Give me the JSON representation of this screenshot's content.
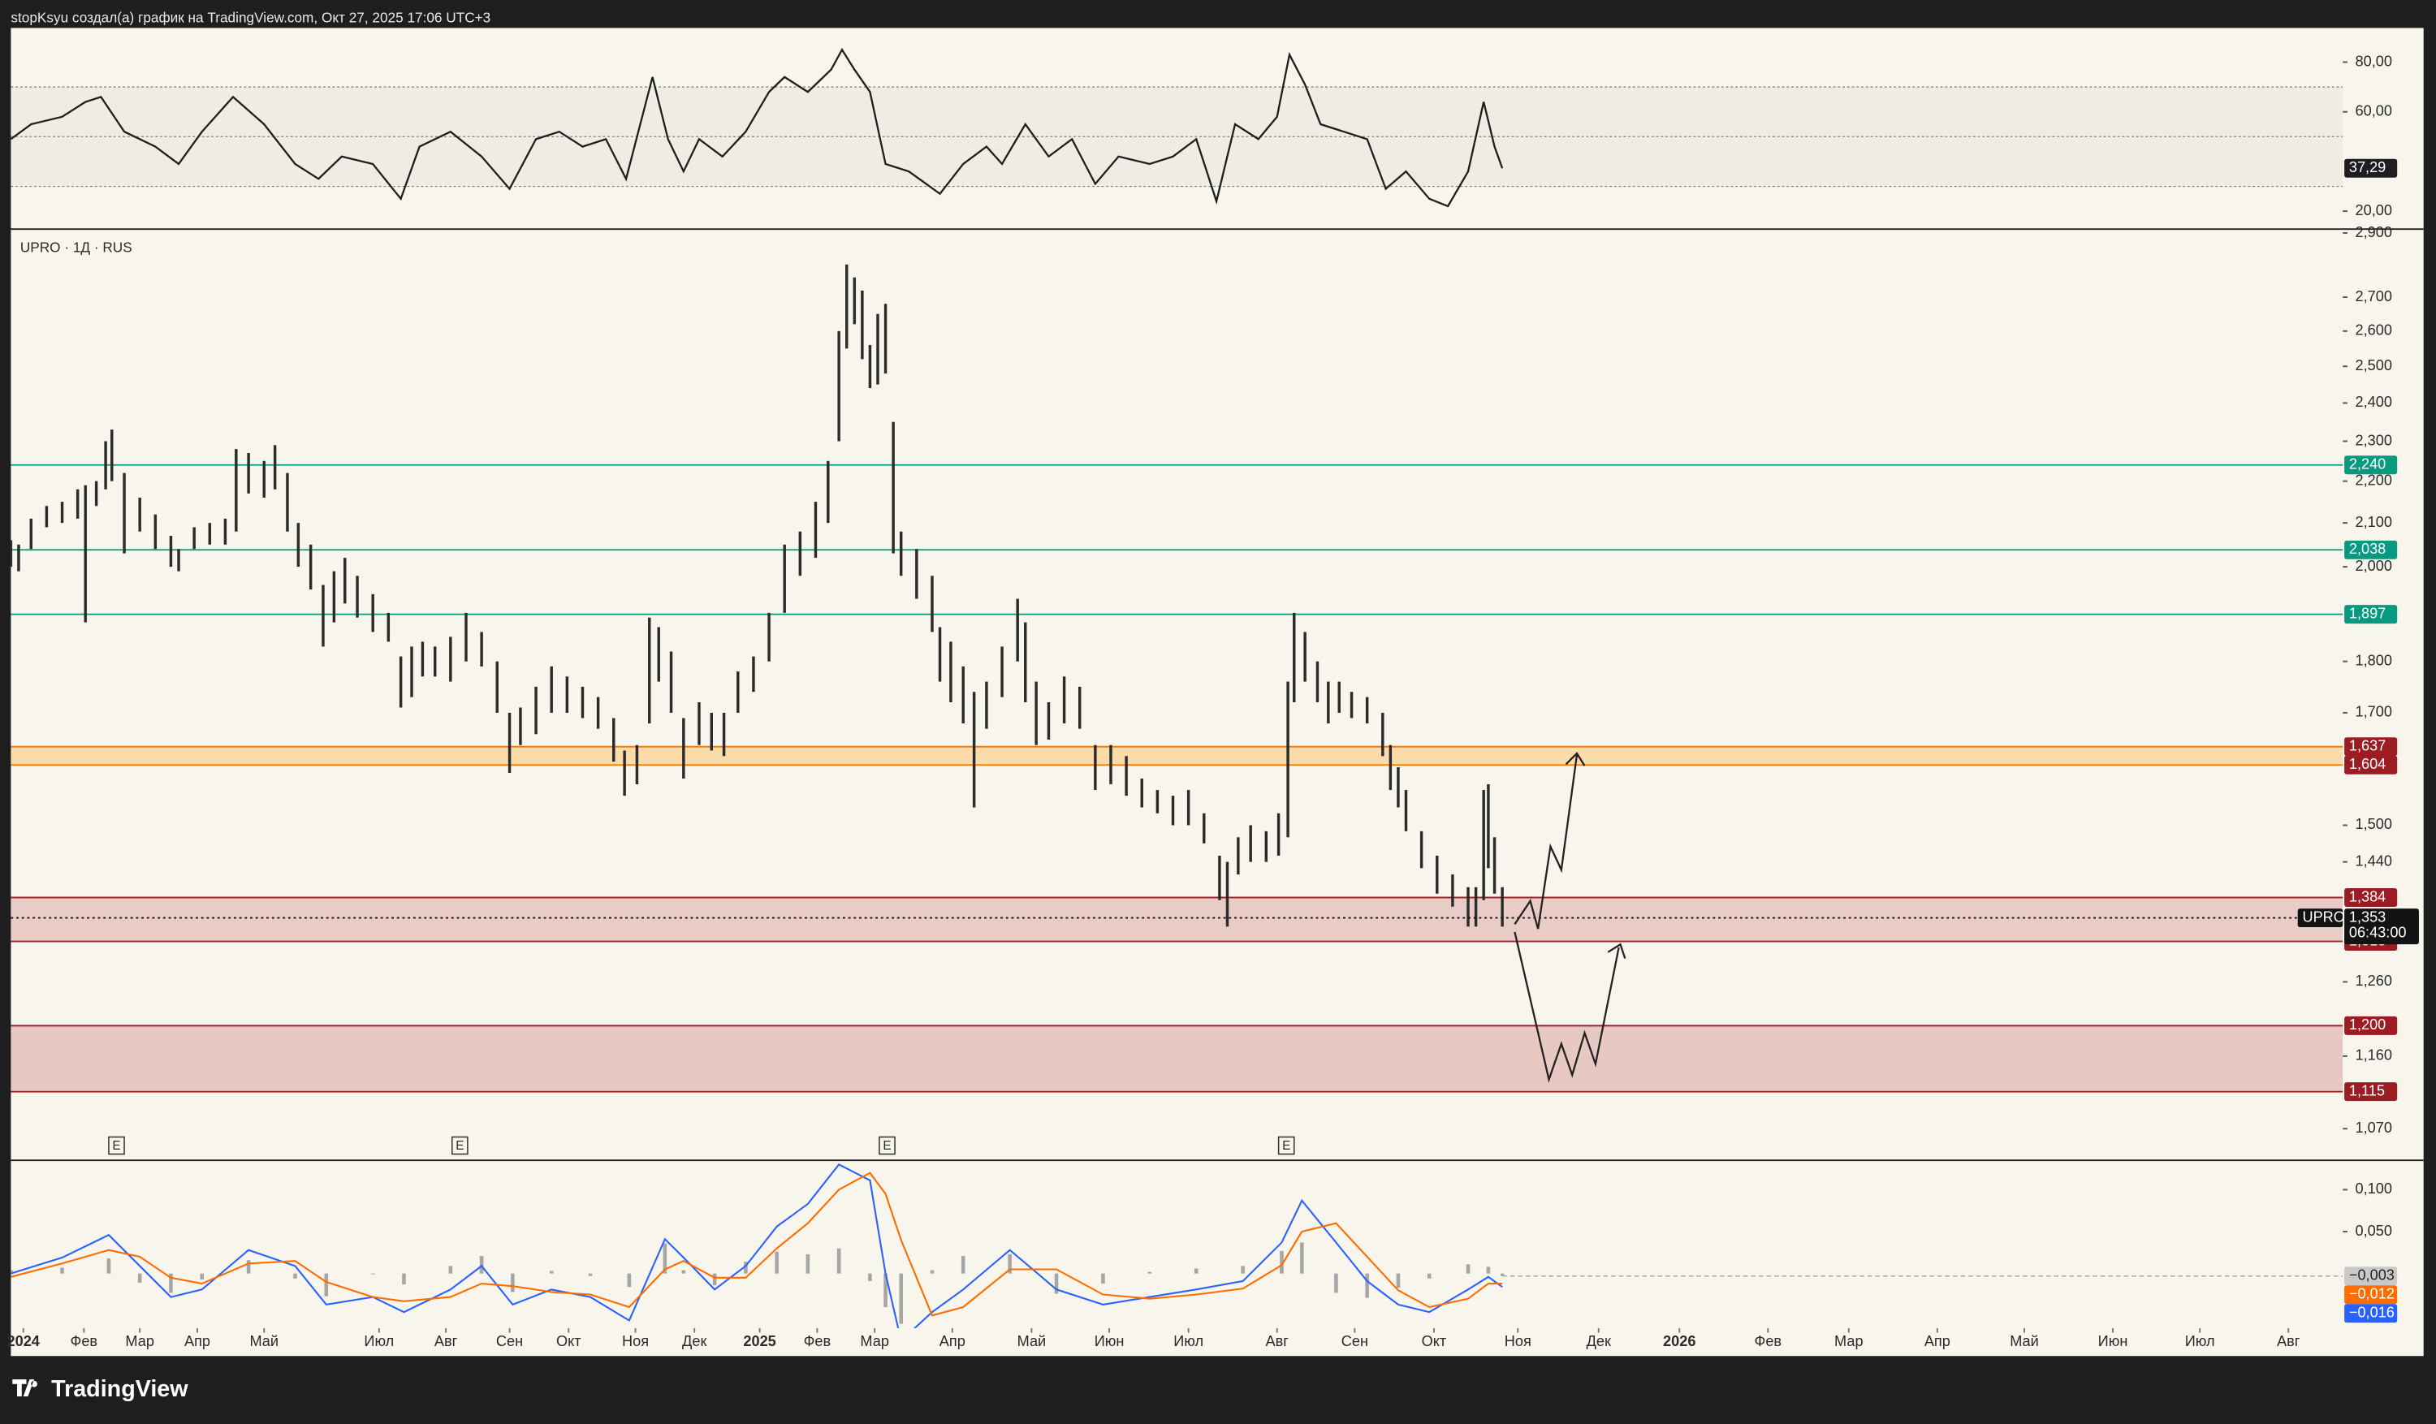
{
  "header": "stopKsyu создал(а) график на TradingView.com, Окт 27, 2025 17:06 UTC+3",
  "footer": "TradingView",
  "chart_data": [
    {
      "type": "line",
      "color": "#1e1e1e",
      "ylim": [
        13.1,
        93.75
      ],
      "xlim": [
        0,
        300
      ],
      "yticks": [
        {
          "value": 80,
          "label": "80,00"
        },
        {
          "value": 60,
          "label": "60,00"
        },
        {
          "value": 20,
          "label": "20,00"
        }
      ],
      "levels": [
        70,
        50,
        30
      ],
      "x": [
        0,
        2.6,
        6.6,
        9.6,
        11.6,
        14.6,
        18.6,
        21.6,
        24.6,
        28.6,
        32.6,
        36.6,
        39.6,
        42.6,
        46.6,
        50.2,
        52.6,
        56.6,
        60.6,
        64.2,
        67.6,
        70.6,
        73.6,
        76.6,
        79.2,
        82.6,
        84.6,
        86.6,
        88.6,
        91.6,
        94.6,
        97.6,
        99.6,
        102.6,
        105.6,
        107,
        108.6,
        110.6,
        112.6,
        115.6,
        119.6,
        122.6,
        125.6,
        127.6,
        130.6,
        133.6,
        136.6,
        139.6,
        142.6,
        146.6,
        149.6,
        152.6,
        155.2,
        157.6,
        160.6,
        163,
        164.6,
        166.6,
        168.6,
        171.6,
        174.6,
        177,
        179.6,
        182.6,
        185,
        187.6,
        189.6,
        191,
        192
      ],
      "values": [
        49,
        55,
        58,
        64,
        66,
        52,
        46,
        39,
        52,
        66,
        55,
        39,
        33,
        42,
        39,
        25,
        46,
        52,
        42,
        29,
        49,
        52,
        46,
        49,
        33,
        74,
        49,
        36,
        49,
        42,
        52,
        68,
        74,
        68,
        77,
        85,
        77,
        68,
        39,
        36,
        27,
        39,
        46,
        39,
        55,
        42,
        49,
        31,
        42,
        39,
        42,
        49,
        24,
        55,
        49,
        58,
        83,
        71,
        55,
        52,
        49,
        29,
        36,
        25,
        22,
        36,
        64,
        46,
        37.29
      ],
      "last_value": {
        "value": 37.29,
        "label": "37,29"
      }
    },
    {
      "type": "ohlc",
      "title": "UPRO · 1Д · RUS",
      "symbol": "UPRO",
      "log": true,
      "color": "#2b2b2b",
      "ylim": [
        1033,
        2910
      ],
      "xlim": [
        0,
        300
      ],
      "yticks": [
        {
          "value": 2900,
          "label": "2,900"
        },
        {
          "value": 2700,
          "label": "2,700"
        },
        {
          "value": 2600,
          "label": "2,600"
        },
        {
          "value": 2500,
          "label": "2,500"
        },
        {
          "value": 2400,
          "label": "2,400"
        },
        {
          "value": 2300,
          "label": "2,300"
        },
        {
          "value": 2200,
          "label": "2,200"
        },
        {
          "value": 2100,
          "label": "2,100"
        },
        {
          "value": 2000,
          "label": "2,000"
        },
        {
          "value": 1800,
          "label": "1,800"
        },
        {
          "value": 1700,
          "label": "1,700"
        },
        {
          "value": 1500,
          "label": "1,500"
        },
        {
          "value": 1440,
          "label": "1,440"
        },
        {
          "value": 1260,
          "label": "1,260"
        },
        {
          "value": 1160,
          "label": "1,160"
        },
        {
          "value": 1070,
          "label": "1,070"
        }
      ],
      "x": [
        0,
        1,
        2.6,
        4.6,
        6.6,
        8.6,
        9.6,
        11,
        12.2,
        13,
        14.6,
        16.6,
        18.6,
        20.6,
        21.6,
        23.6,
        25.6,
        27.6,
        29,
        30.6,
        32.6,
        34,
        35.6,
        37,
        38.6,
        40.2,
        41.6,
        43,
        44.6,
        46.6,
        48.6,
        50.2,
        51.6,
        53,
        54.6,
        56.6,
        58.6,
        60.6,
        62.6,
        64.2,
        65.6,
        67.6,
        69.6,
        71.6,
        73.6,
        75.6,
        77.6,
        79,
        80.6,
        82.2,
        83.4,
        85,
        86.6,
        88.6,
        90.2,
        91.8,
        93.6,
        95.6,
        97.6,
        99.6,
        101.6,
        103.6,
        105.2,
        106.6,
        107.6,
        108.6,
        109.6,
        110.6,
        111.6,
        112.6,
        113.6,
        114.6,
        116.6,
        118.6,
        119.6,
        121,
        122.6,
        124,
        125.6,
        127.6,
        129.6,
        130.6,
        132,
        133.6,
        135.6,
        137.6,
        139.6,
        141.6,
        143.6,
        145.6,
        147.6,
        149.6,
        151.6,
        153.6,
        155.6,
        156.6,
        158,
        159.6,
        161.6,
        163.2,
        164.4,
        165.2,
        166.6,
        168.2,
        169.6,
        171,
        172.6,
        174.6,
        176.6,
        177.6,
        178.6,
        179.6,
        181.6,
        183.6,
        185.6,
        187.6,
        188.6,
        189.6,
        190.2,
        191,
        192
      ],
      "high": [
        2060,
        2050,
        2110,
        2140,
        2150,
        2180,
        2190,
        2200,
        2300,
        2330,
        2220,
        2160,
        2120,
        2070,
        2040,
        2090,
        2100,
        2110,
        2280,
        2270,
        2250,
        2290,
        2220,
        2100,
        2050,
        1960,
        1990,
        2020,
        1980,
        1940,
        1900,
        1810,
        1830,
        1840,
        1830,
        1850,
        1900,
        1860,
        1800,
        1700,
        1710,
        1750,
        1790,
        1770,
        1750,
        1730,
        1690,
        1630,
        1640,
        1890,
        1870,
        1820,
        1690,
        1720,
        1700,
        1700,
        1780,
        1810,
        1900,
        2050,
        2080,
        2150,
        2250,
        2600,
        2800,
        2760,
        2720,
        2560,
        2650,
        2680,
        2350,
        2080,
        2040,
        1980,
        1870,
        1840,
        1790,
        1740,
        1760,
        1830,
        1930,
        1880,
        1760,
        1720,
        1770,
        1750,
        1640,
        1640,
        1620,
        1580,
        1560,
        1550,
        1560,
        1520,
        1450,
        1440,
        1480,
        1500,
        1490,
        1520,
        1760,
        1900,
        1860,
        1800,
        1760,
        1760,
        1740,
        1730,
        1700,
        1640,
        1600,
        1560,
        1490,
        1450,
        1420,
        1400,
        1400,
        1560,
        1570,
        1480,
        1400
      ],
      "low": [
        2000,
        1990,
        2040,
        2090,
        2100,
        2110,
        1880,
        2140,
        2180,
        2200,
        2030,
        2080,
        2040,
        2000,
        1990,
        2040,
        2050,
        2050,
        2080,
        2170,
        2160,
        2180,
        2080,
        2000,
        1950,
        1830,
        1880,
        1920,
        1890,
        1860,
        1840,
        1710,
        1730,
        1770,
        1770,
        1760,
        1800,
        1790,
        1700,
        1590,
        1640,
        1660,
        1700,
        1700,
        1690,
        1670,
        1610,
        1550,
        1570,
        1680,
        1760,
        1700,
        1580,
        1640,
        1630,
        1620,
        1700,
        1740,
        1800,
        1900,
        1980,
        2020,
        2100,
        2300,
        2550,
        2620,
        2520,
        2440,
        2450,
        2480,
        2030,
        1980,
        1930,
        1860,
        1760,
        1720,
        1680,
        1530,
        1670,
        1730,
        1800,
        1720,
        1640,
        1650,
        1680,
        1670,
        1560,
        1570,
        1550,
        1530,
        1520,
        1500,
        1500,
        1470,
        1380,
        1340,
        1420,
        1440,
        1440,
        1450,
        1480,
        1720,
        1760,
        1720,
        1680,
        1700,
        1690,
        1680,
        1620,
        1560,
        1530,
        1490,
        1430,
        1390,
        1370,
        1340,
        1340,
        1380,
        1430,
        1390,
        1340
      ],
      "levels": [
        {
          "value": 2240,
          "label": "2,240",
          "color": "#089981"
        },
        {
          "value": 2038,
          "label": "2,038",
          "color": "#089981"
        },
        {
          "value": 1897,
          "label": "1,897",
          "color": "#089981"
        }
      ],
      "zones": [
        {
          "top": {
            "value": 1637,
            "label": "1,637"
          },
          "bottom": {
            "value": 1604,
            "label": "1,604"
          },
          "color": "#f57c00",
          "fill": "rgba(255,152,0,0.28)",
          "label_color": "#9b1c22"
        },
        {
          "top": {
            "value": 1384,
            "label": "1,384"
          },
          "bottom": {
            "value": 1318,
            "label": "1,318"
          },
          "color": "#a3232b",
          "fill": "rgba(178,40,51,0.2)",
          "label_color": "#9b1c22"
        },
        {
          "top": {
            "value": 1200,
            "label": "1,200"
          },
          "bottom": {
            "value": 1115,
            "label": "1,115"
          },
          "color": "#a3232b",
          "fill": "rgba(178,40,51,0.22)",
          "label_color": "#9b1c22"
        }
      ],
      "last_value": {
        "value": 1353,
        "label": "1,353",
        "countdown": "06:43:00"
      },
      "earnings": [
        {
          "x": 13.6,
          "label": "E"
        },
        {
          "x": 57.8,
          "label": "E"
        },
        {
          "x": 112.8,
          "label": "E"
        },
        {
          "x": 164.2,
          "label": "E"
        }
      ]
    },
    {
      "type": "macd",
      "ylim": [
        -0.065,
        0.135
      ],
      "xlim": [
        0,
        300
      ],
      "yticks": [
        {
          "value": 0.1,
          "label": "0,100"
        },
        {
          "value": 0.05,
          "label": "0,050"
        }
      ],
      "xticks": [
        {
          "value": 1.6,
          "label": "2024"
        },
        {
          "value": 9.4,
          "label": "Фев"
        },
        {
          "value": 16.6,
          "label": "Мар"
        },
        {
          "value": 24,
          "label": "Апр"
        },
        {
          "value": 32.6,
          "label": "Май"
        },
        {
          "value": 47.4,
          "label": "Июл"
        },
        {
          "value": 56,
          "label": "Авг"
        },
        {
          "value": 64.2,
          "label": "Сен"
        },
        {
          "value": 71.8,
          "label": "Окт"
        },
        {
          "value": 80.4,
          "label": "Ноя"
        },
        {
          "value": 88,
          "label": "Дек"
        },
        {
          "value": 96.4,
          "label": "2025"
        },
        {
          "value": 103.8,
          "label": "Фев"
        },
        {
          "value": 111.2,
          "label": "Мар"
        },
        {
          "value": 121.2,
          "label": "Апр"
        },
        {
          "value": 131.4,
          "label": "Май"
        },
        {
          "value": 141.4,
          "label": "Июн"
        },
        {
          "value": 151.6,
          "label": "Июл"
        },
        {
          "value": 163,
          "label": "Авг"
        },
        {
          "value": 173,
          "label": "Сен"
        },
        {
          "value": 183.2,
          "label": "Окт"
        },
        {
          "value": 194,
          "label": "Ноя"
        },
        {
          "value": 204.4,
          "label": "Дек"
        },
        {
          "value": 214.8,
          "label": "2026"
        },
        {
          "value": 226.2,
          "label": "Фев"
        },
        {
          "value": 236.6,
          "label": "Мар"
        },
        {
          "value": 248,
          "label": "Апр"
        },
        {
          "value": 259.2,
          "label": "Май"
        },
        {
          "value": 270.6,
          "label": "Июн"
        },
        {
          "value": 281.8,
          "label": "Июл"
        },
        {
          "value": 293.2,
          "label": "Авг"
        }
      ],
      "x": [
        0,
        6.6,
        12.6,
        16.6,
        20.6,
        24.6,
        30.6,
        36.6,
        40.6,
        46.6,
        50.6,
        56.6,
        60.6,
        64.6,
        69.6,
        74.6,
        79.6,
        84.2,
        86.6,
        90.6,
        94.6,
        98.6,
        102.6,
        106.6,
        110.6,
        112.6,
        114.6,
        118.6,
        122.6,
        128.6,
        134.6,
        140.6,
        146.6,
        152.6,
        158.6,
        163.6,
        166.2,
        170.6,
        174.6,
        178.6,
        182.6,
        187.6,
        190.2,
        192
      ],
      "histogram": {
        "color": "#a6a6a6",
        "label_color": "#c9c9c9",
        "values": [
          0.004,
          0.007,
          0.018,
          -0.011,
          -0.023,
          -0.007,
          0.016,
          -0.006,
          -0.027,
          0,
          -0.013,
          0.009,
          0.021,
          -0.022,
          0.003,
          -0.003,
          -0.016,
          0.036,
          0.004,
          -0.014,
          0.014,
          0.026,
          0.023,
          0.03,
          -0.009,
          -0.04,
          -0.06,
          0.004,
          0.021,
          0.023,
          -0.024,
          -0.012,
          0.002,
          0.006,
          0.009,
          0.027,
          0.037,
          -0.023,
          -0.029,
          -0.017,
          -0.006,
          0.011,
          0.008,
          -0.003
        ],
        "last_value": {
          "value": -0.003,
          "label": "−0,003"
        }
      },
      "series": [
        {
          "color": "#2962ff",
          "values": [
            0,
            0.019,
            0.046,
            0.009,
            -0.028,
            -0.019,
            0.028,
            0.009,
            -0.037,
            -0.028,
            -0.046,
            -0.019,
            0.009,
            -0.037,
            -0.019,
            -0.028,
            -0.056,
            0.041,
            0.019,
            -0.019,
            0.009,
            0.056,
            0.083,
            0.13,
            0.111,
            0,
            -0.08,
            -0.046,
            -0.019,
            0.028,
            -0.019,
            -0.037,
            -0.028,
            -0.019,
            -0.009,
            0.037,
            0.087,
            0.037,
            -0.009,
            -0.037,
            -0.046,
            -0.019,
            -0.004,
            -0.016
          ],
          "last_value": {
            "value": -0.016,
            "label": "−0,016"
          }
        },
        {
          "color": "#ff6d00",
          "values": [
            -0.004,
            0.012,
            0.028,
            0.02,
            -0.005,
            -0.012,
            0.012,
            0.015,
            -0.01,
            -0.028,
            -0.033,
            -0.028,
            -0.012,
            -0.015,
            -0.022,
            -0.025,
            -0.04,
            0.005,
            0.015,
            -0.005,
            -0.005,
            0.03,
            0.06,
            0.1,
            0.12,
            0.095,
            0.04,
            -0.05,
            -0.04,
            0.005,
            0.005,
            -0.025,
            -0.03,
            -0.025,
            -0.018,
            0.01,
            0.05,
            0.06,
            0.02,
            -0.02,
            -0.04,
            -0.03,
            -0.012,
            -0.012
          ],
          "last_value": {
            "value": -0.012,
            "label": "−0,012"
          }
        }
      ]
    }
  ]
}
